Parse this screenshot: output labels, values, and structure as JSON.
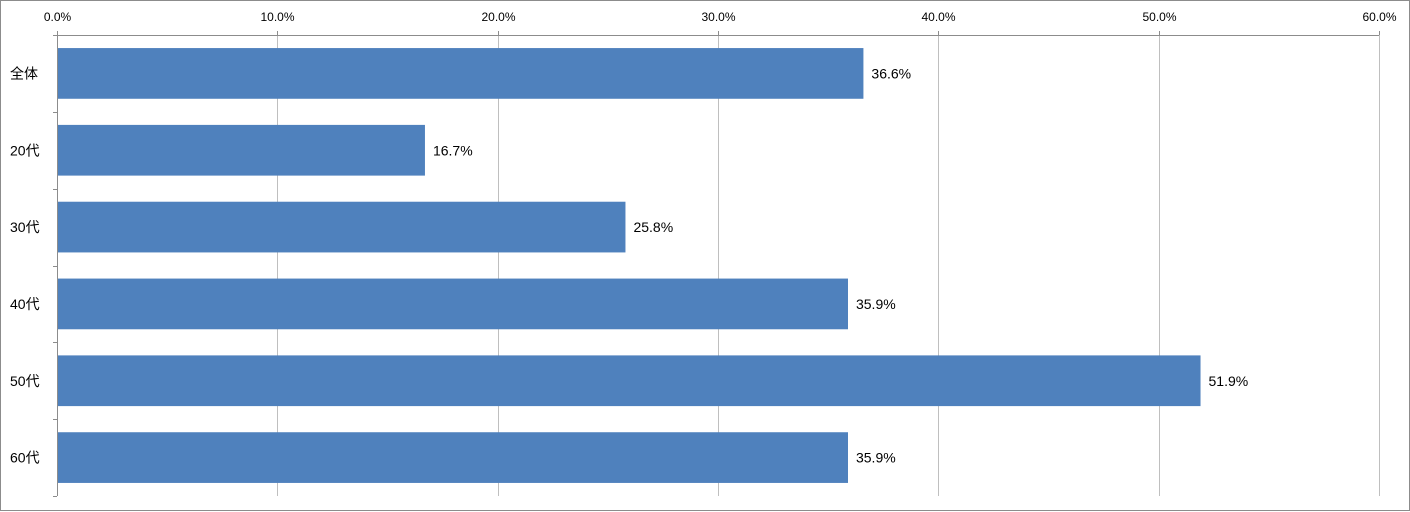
{
  "chart_data": {
    "type": "bar",
    "orientation": "horizontal",
    "categories": [
      "全体",
      "20代",
      "30代",
      "40代",
      "50代",
      "60代"
    ],
    "values": [
      36.6,
      16.7,
      25.8,
      35.9,
      51.9,
      35.9
    ],
    "value_labels": [
      "36.6%",
      "16.7%",
      "25.8%",
      "35.9%",
      "51.9%",
      "35.9%"
    ],
    "xlim": [
      0,
      60
    ],
    "x_ticks": [
      0,
      10,
      20,
      30,
      40,
      50,
      60
    ],
    "x_tick_labels": [
      "0.0%",
      "10.0%",
      "20.0%",
      "30.0%",
      "40.0%",
      "50.0%",
      "60.0%"
    ],
    "x_axis_position": "top",
    "grid": true,
    "legend": "none",
    "bar_color": "#4f81bd",
    "grid_color": "#bfbfbf"
  }
}
